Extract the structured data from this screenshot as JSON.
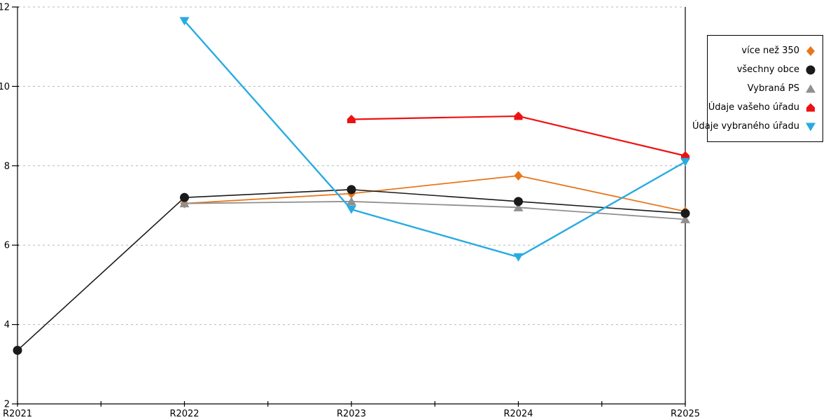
{
  "chart_data": {
    "type": "line",
    "title": "",
    "xlabel": "",
    "ylabel": "",
    "categories": [
      "R2021",
      "R2022",
      "R2023",
      "R2024",
      "R2025"
    ],
    "ylim": [
      2,
      12
    ],
    "yticks": [
      2,
      4,
      6,
      8,
      10,
      12
    ],
    "grid": "horizontal-dashed",
    "legend_position": "right",
    "colors": {
      "grid": "#B8B8B8",
      "axis": "#000000"
    },
    "series": [
      {
        "name": "více než 350",
        "color": "#E8761B",
        "marker": "diamond",
        "values": [
          null,
          7.05,
          7.3,
          7.75,
          6.85
        ]
      },
      {
        "name": "všechny obce",
        "color": "#1A1A1A",
        "marker": "circle",
        "values": [
          3.35,
          7.2,
          7.4,
          7.1,
          6.8
        ]
      },
      {
        "name": "Vybraná PS",
        "color": "#909090",
        "marker": "triangle-up",
        "values": [
          null,
          7.05,
          7.1,
          6.95,
          6.65
        ]
      },
      {
        "name": "Údaje vašeho úřadu",
        "color": "#EE1111",
        "marker": "pentagon-up",
        "values": [
          null,
          null,
          9.17,
          9.25,
          8.25
        ]
      },
      {
        "name": "Údaje vybraného úřadu",
        "color": "#29ABE2",
        "marker": "triangle-down",
        "values": [
          null,
          11.65,
          6.9,
          5.7,
          8.1
        ]
      }
    ]
  }
}
